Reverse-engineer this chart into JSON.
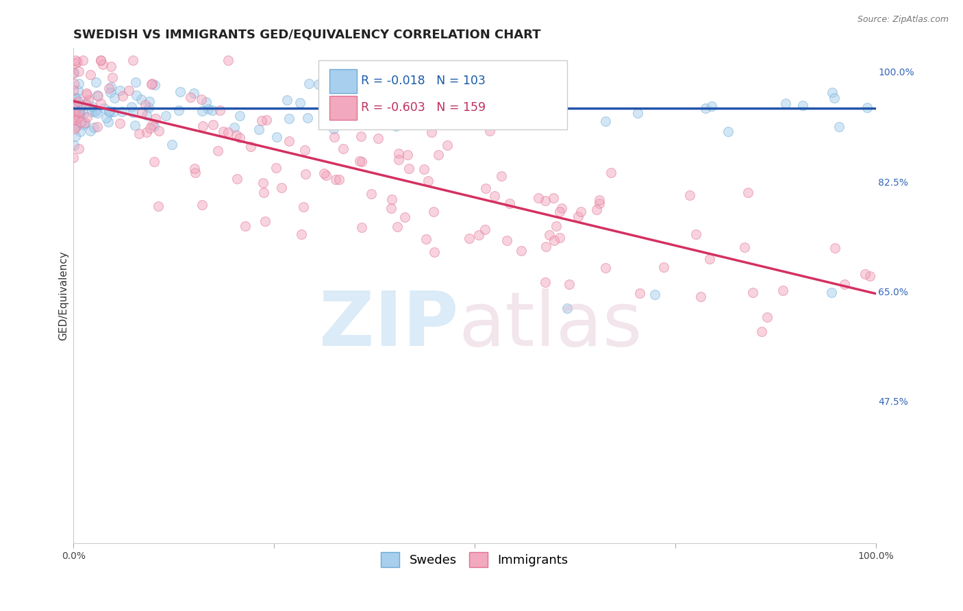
{
  "title": "SWEDISH VS IMMIGRANTS GED/EQUIVALENCY CORRELATION CHART",
  "source": "Source: ZipAtlas.com",
  "ylabel": "GED/Equivalency",
  "right_yticks": [
    1.0,
    0.825,
    0.65,
    0.475
  ],
  "right_ytick_labels": [
    "100.0%",
    "82.5%",
    "65.0%",
    "47.5%"
  ],
  "swedes_R": -0.018,
  "swedes_N": 103,
  "immigrants_R": -0.603,
  "immigrants_N": 159,
  "swedes_color": "#A8CFED",
  "swedes_edge": "#6AAAD4",
  "immigrants_color": "#F2A8BE",
  "immigrants_edge": "#E07095",
  "trend_swedes_color": "#2255AA",
  "trend_immigrants_color": "#D43060",
  "background_color": "#FFFFFF",
  "grid_color": "#DDDDDD",
  "ylim": [
    0.25,
    1.04
  ],
  "xlim": [
    0.0,
    1.0
  ],
  "marker_size": 100,
  "marker_alpha": 0.5,
  "title_fontsize": 13,
  "axis_label_fontsize": 11,
  "tick_fontsize": 10,
  "legend_fontsize": 13,
  "sw_trend_y0": 0.944,
  "sw_trend_y1": 0.944,
  "im_trend_y0": 0.955,
  "im_trend_y1": 0.648
}
